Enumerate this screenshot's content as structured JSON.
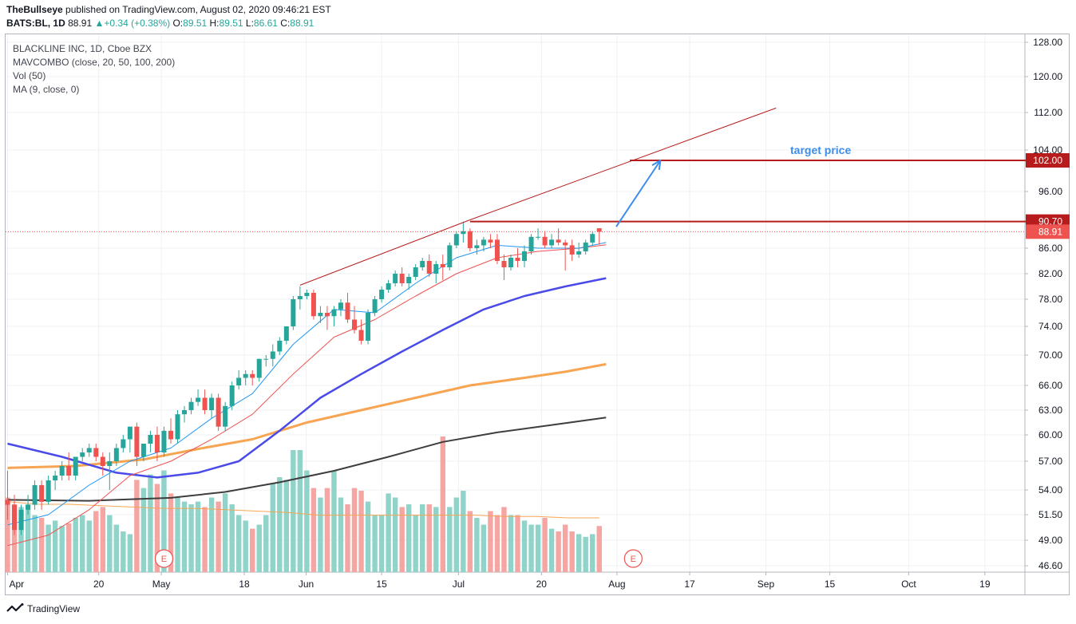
{
  "header": {
    "author": "TheBullseye",
    "published": "published on TradingView.com, August 02, 2020 09:46:21 EST",
    "symbol": "BATS:BL, 1D",
    "last": "88.91",
    "change": "+0.34 (+0.38%)",
    "o_label": "O:",
    "o": "89.51",
    "h_label": "H:",
    "h": "89.51",
    "l_label": "L:",
    "l": "86.61",
    "c_label": "C:",
    "c": "88.91"
  },
  "legend": {
    "title": "BLACKLINE INC, 1D, Cboe BZX",
    "study1": "MAVCOMBO (close, 20, 50, 100, 200)",
    "study2": "Vol (50)",
    "study3": "MA (9, close, 0)"
  },
  "annotation": {
    "target_label": "target price",
    "earnings_marker": "E"
  },
  "footer": {
    "brand": "TradingView"
  },
  "colors": {
    "up": "#26a69a",
    "down": "#ef5350",
    "ma20": "#ef5350",
    "ma9": "#2196f3",
    "ma50": "#4a4ae8",
    "ma100": "#f7a552",
    "ma200": "#3e3e3e",
    "level": "#b71c1c",
    "arrow": "#3d8ee8"
  },
  "chart_data": {
    "type": "candlestick",
    "ylim": [
      46.6,
      128.0
    ],
    "y_ticks": [
      "128.00",
      "120.00",
      "112.00",
      "104.00",
      "96.00",
      "86.00",
      "82.00",
      "78.00",
      "74.00",
      "70.00",
      "66.00",
      "63.00",
      "60.00",
      "57.00",
      "54.00",
      "51.50",
      "49.00",
      "46.60"
    ],
    "x_ticks": [
      "Apr",
      "20",
      "May",
      "18",
      "Jun",
      "15",
      "Jul",
      "20",
      "Aug",
      "17",
      "Sep",
      "15",
      "Oct",
      "19"
    ],
    "price_labels": [
      {
        "text": "102.00",
        "value": 102.0
      },
      {
        "text": "90.70",
        "value": 90.7
      },
      {
        "text": "88.91",
        "value": 88.91
      }
    ],
    "ohlc": [
      [
        53.0,
        56.0,
        51.0,
        52.5
      ],
      [
        52.5,
        53.5,
        49.5,
        50.0
      ],
      [
        50.0,
        52.5,
        49.5,
        52.0
      ],
      [
        52.0,
        53.5,
        51.5,
        52.5
      ],
      [
        52.5,
        55.0,
        52.0,
        54.5
      ],
      [
        54.5,
        55.0,
        52.0,
        52.8
      ],
      [
        52.8,
        55.5,
        52.5,
        55.0
      ],
      [
        55.0,
        56.0,
        54.0,
        55.5
      ],
      [
        55.5,
        57.0,
        55.0,
        56.5
      ],
      [
        56.5,
        58.0,
        55.0,
        55.5
      ],
      [
        55.5,
        57.5,
        55.0,
        57.5
      ],
      [
        57.5,
        58.5,
        57.0,
        58.0
      ],
      [
        58.0,
        59.0,
        57.5,
        58.5
      ],
      [
        58.5,
        59.0,
        57.0,
        57.5
      ],
      [
        57.5,
        58.0,
        55.5,
        56.5
      ],
      [
        56.5,
        58.0,
        54.0,
        57.0
      ],
      [
        57.0,
        59.0,
        56.5,
        58.5
      ],
      [
        58.5,
        60.0,
        58.0,
        59.5
      ],
      [
        59.5,
        61.0,
        58.0,
        61.0
      ],
      [
        61.0,
        61.5,
        56.5,
        57.5
      ],
      [
        57.5,
        59.0,
        57.0,
        59.0
      ],
      [
        59.0,
        60.5,
        58.0,
        60.0
      ],
      [
        60.0,
        61.0,
        57.0,
        58.0
      ],
      [
        58.0,
        61.0,
        57.5,
        60.5
      ],
      [
        60.5,
        62.0,
        59.0,
        59.5
      ],
      [
        59.5,
        63.0,
        59.0,
        62.5
      ],
      [
        62.5,
        63.5,
        61.5,
        63.0
      ],
      [
        63.0,
        64.5,
        62.5,
        64.0
      ],
      [
        64.0,
        65.5,
        63.5,
        64.5
      ],
      [
        64.5,
        65.5,
        62.5,
        63.0
      ],
      [
        63.0,
        65.0,
        62.0,
        64.5
      ],
      [
        64.5,
        65.0,
        60.5,
        61.0
      ],
      [
        61.0,
        64.0,
        60.5,
        63.5
      ],
      [
        63.5,
        66.5,
        63.0,
        66.0
      ],
      [
        66.0,
        68.0,
        65.5,
        67.0
      ],
      [
        67.0,
        68.0,
        66.0,
        67.5
      ],
      [
        67.5,
        68.0,
        66.0,
        67.0
      ],
      [
        67.0,
        69.5,
        66.5,
        69.5
      ],
      [
        69.5,
        70.0,
        68.5,
        69.5
      ],
      [
        69.5,
        71.5,
        68.5,
        70.5
      ],
      [
        70.5,
        72.5,
        70.0,
        72.0
      ],
      [
        72.0,
        74.0,
        71.5,
        74.0
      ],
      [
        74.0,
        78.5,
        73.5,
        78.0
      ],
      [
        78.0,
        80.0,
        76.5,
        78.5
      ],
      [
        78.5,
        79.5,
        78.0,
        79.0
      ],
      [
        79.0,
        79.5,
        75.0,
        75.5
      ],
      [
        75.5,
        77.0,
        74.5,
        76.0
      ],
      [
        76.0,
        77.0,
        73.5,
        75.5
      ],
      [
        75.5,
        77.0,
        74.0,
        76.5
      ],
      [
        76.5,
        78.0,
        75.5,
        77.5
      ],
      [
        77.5,
        79.0,
        74.5,
        75.0
      ],
      [
        75.0,
        77.0,
        73.0,
        73.5
      ],
      [
        73.5,
        75.0,
        71.5,
        72.0
      ],
      [
        72.0,
        76.5,
        71.5,
        76.0
      ],
      [
        76.0,
        78.5,
        75.5,
        78.0
      ],
      [
        78.0,
        80.0,
        77.5,
        79.5
      ],
      [
        79.5,
        81.0,
        79.0,
        80.5
      ],
      [
        80.5,
        82.5,
        80.0,
        82.0
      ],
      [
        82.0,
        83.0,
        80.0,
        80.5
      ],
      [
        80.5,
        82.0,
        79.5,
        81.5
      ],
      [
        81.5,
        83.5,
        81.0,
        83.0
      ],
      [
        83.0,
        84.5,
        82.5,
        84.0
      ],
      [
        84.0,
        85.0,
        81.5,
        82.0
      ],
      [
        82.0,
        84.0,
        80.5,
        83.5
      ],
      [
        83.5,
        85.0,
        81.0,
        83.0
      ],
      [
        83.0,
        87.0,
        82.5,
        86.5
      ],
      [
        86.5,
        89.0,
        86.0,
        88.5
      ],
      [
        88.5,
        90.7,
        87.0,
        89.0
      ],
      [
        89.0,
        89.5,
        85.5,
        86.0
      ],
      [
        86.0,
        87.5,
        85.0,
        86.5
      ],
      [
        86.5,
        88.0,
        85.5,
        87.5
      ],
      [
        87.5,
        88.5,
        86.0,
        87.0
      ],
      [
        87.5,
        88.5,
        83.5,
        84.0
      ],
      [
        84.0,
        85.0,
        81.0,
        83.0
      ],
      [
        83.0,
        85.0,
        82.5,
        84.5
      ],
      [
        84.5,
        86.0,
        83.0,
        84.0
      ],
      [
        84.0,
        86.5,
        83.0,
        85.5
      ],
      [
        85.5,
        88.5,
        85.0,
        88.0
      ],
      [
        88.0,
        89.5,
        87.5,
        88.0
      ],
      [
        88.0,
        89.0,
        86.0,
        86.5
      ],
      [
        86.5,
        88.5,
        86.0,
        87.5
      ],
      [
        87.5,
        89.5,
        86.5,
        87.0
      ],
      [
        87.0,
        87.5,
        82.5,
        86.5
      ],
      [
        86.5,
        87.5,
        84.0,
        85.0
      ],
      [
        85.0,
        87.0,
        84.5,
        85.5
      ],
      [
        85.5,
        87.5,
        85.0,
        87.0
      ],
      [
        87.0,
        89.0,
        86.5,
        88.5
      ],
      [
        89.51,
        89.51,
        86.61,
        88.91
      ]
    ],
    "volume_rel": [
      0.55,
      0.5,
      0.48,
      0.5,
      0.42,
      0.4,
      0.35,
      0.38,
      0.34,
      0.36,
      0.4,
      0.42,
      0.38,
      0.45,
      0.48,
      0.42,
      0.35,
      0.3,
      0.28,
      0.68,
      0.62,
      0.72,
      0.65,
      0.75,
      0.58,
      0.55,
      0.52,
      0.5,
      0.52,
      0.48,
      0.55,
      0.52,
      0.58,
      0.5,
      0.42,
      0.38,
      0.32,
      0.35,
      0.42,
      0.65,
      0.7,
      0.68,
      0.9,
      0.9,
      0.75,
      0.62,
      0.55,
      0.62,
      0.75,
      0.55,
      0.5,
      0.62,
      0.6,
      0.52,
      0.42,
      0.42,
      0.58,
      0.55,
      0.48,
      0.5,
      0.42,
      0.5,
      0.5,
      0.48,
      1.0,
      0.48,
      0.55,
      0.6,
      0.45,
      0.4,
      0.35,
      0.45,
      0.42,
      0.48,
      0.42,
      0.42,
      0.38,
      0.35,
      0.35,
      0.4,
      0.32,
      0.3,
      0.35,
      0.3,
      0.28,
      0.26,
      0.28,
      0.34
    ],
    "volume_ma_rel": [
      0.52,
      0.5,
      0.5,
      0.49,
      0.48,
      0.47,
      0.47,
      0.46,
      0.45,
      0.44,
      0.42,
      0.42,
      0.42,
      0.42,
      0.42,
      0.42,
      0.41,
      0.41,
      0.4,
      0.4
    ],
    "ma9": [
      [
        0,
        50.5
      ],
      [
        6,
        51.5
      ],
      [
        12,
        54.5
      ],
      [
        18,
        57.0
      ],
      [
        24,
        58.5
      ],
      [
        30,
        62.0
      ],
      [
        36,
        65.0
      ],
      [
        42,
        71.5
      ],
      [
        48,
        76.5
      ],
      [
        54,
        76.0
      ],
      [
        60,
        80.5
      ],
      [
        66,
        84.5
      ],
      [
        72,
        86.5
      ],
      [
        78,
        86.0
      ],
      [
        84,
        86.0
      ],
      [
        88,
        87.0
      ]
    ],
    "ma20": [
      [
        0,
        48.5
      ],
      [
        6,
        49.5
      ],
      [
        12,
        52.0
      ],
      [
        18,
        55.5
      ],
      [
        24,
        57.0
      ],
      [
        30,
        59.5
      ],
      [
        36,
        62.5
      ],
      [
        42,
        67.5
      ],
      [
        48,
        72.5
      ],
      [
        54,
        75.0
      ],
      [
        60,
        78.5
      ],
      [
        66,
        82.0
      ],
      [
        72,
        84.5
      ],
      [
        78,
        85.5
      ],
      [
        84,
        86.0
      ],
      [
        88,
        86.6
      ]
    ],
    "ma50": [
      [
        0,
        59.0
      ],
      [
        8,
        57.5
      ],
      [
        16,
        55.8
      ],
      [
        22,
        55.3
      ],
      [
        28,
        55.8
      ],
      [
        34,
        57.0
      ],
      [
        40,
        60.5
      ],
      [
        46,
        64.5
      ],
      [
        52,
        67.5
      ],
      [
        58,
        70.5
      ],
      [
        64,
        73.5
      ],
      [
        70,
        76.5
      ],
      [
        76,
        78.5
      ],
      [
        82,
        80.0
      ],
      [
        88,
        81.3
      ]
    ],
    "ma100": [
      [
        0,
        56.3
      ],
      [
        10,
        56.5
      ],
      [
        20,
        57.2
      ],
      [
        28,
        58.4
      ],
      [
        36,
        59.5
      ],
      [
        44,
        61.5
      ],
      [
        52,
        63.0
      ],
      [
        60,
        64.5
      ],
      [
        68,
        66.0
      ],
      [
        76,
        67.0
      ],
      [
        82,
        67.8
      ],
      [
        88,
        68.8
      ]
    ],
    "ma200": [
      [
        0,
        53.0
      ],
      [
        12,
        52.9
      ],
      [
        24,
        53.2
      ],
      [
        32,
        53.8
      ],
      [
        40,
        54.8
      ],
      [
        48,
        56.0
      ],
      [
        56,
        57.5
      ],
      [
        64,
        59.2
      ],
      [
        72,
        60.3
      ],
      [
        80,
        61.2
      ],
      [
        88,
        62.1
      ]
    ],
    "levels": [
      {
        "value": 102.0,
        "from": 91.5,
        "to": 153
      },
      {
        "value": 90.7,
        "from": 68,
        "to": 153
      }
    ],
    "channel_upper": [
      [
        43,
        80.2
      ],
      [
        68,
        91.0
      ],
      [
        113,
        113.0
      ]
    ],
    "arrow_target": {
      "from": [
        89.5,
        89.8
      ],
      "to": [
        96,
        102.0
      ]
    },
    "earnings_at": [
      23,
      92
    ]
  }
}
